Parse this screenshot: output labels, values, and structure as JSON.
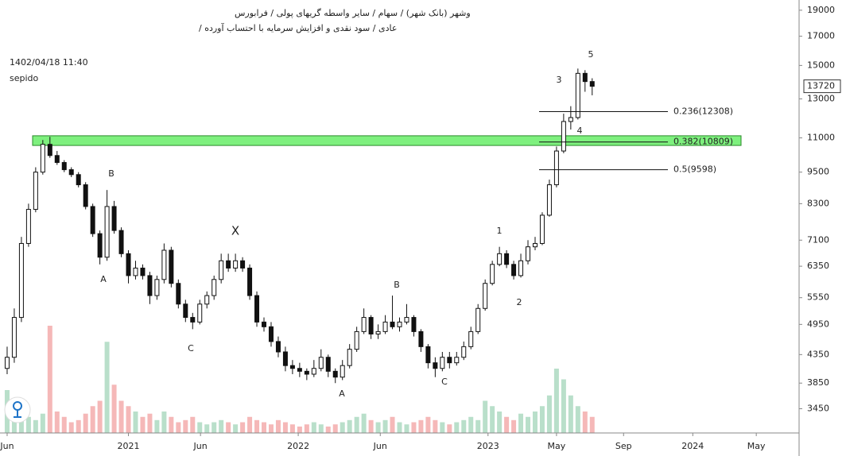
{
  "chart_data": {
    "type": "candlestick",
    "header": [
      "وشهر (بانک شهر) / سهام / سایر واسطه گریهای پولی / فرابورس",
      "عادی / سود نقدی و افزایش سرمایه با احتساب آورده /"
    ],
    "timestamp": "1402/04/18 11:40",
    "source": "sepido",
    "log_scale": true,
    "ylim": [
      3110,
      19850
    ],
    "yticks": [
      19000,
      17000,
      15000,
      13000,
      11000,
      9500,
      8300,
      7100,
      6350,
      5550,
      4950,
      4350,
      3850,
      3450
    ],
    "last_price": 13720,
    "xlim": [
      -1,
      111
    ],
    "xticks": [
      {
        "value": 0,
        "label": "Jun"
      },
      {
        "value": 17,
        "label": "2021"
      },
      {
        "value": 27.1,
        "label": "Jun"
      },
      {
        "value": 40.8,
        "label": "2022"
      },
      {
        "value": 52.3,
        "label": "Jun"
      },
      {
        "value": 67.4,
        "label": "2023"
      },
      {
        "value": 77,
        "label": "May"
      },
      {
        "value": 86.4,
        "label": "Sep"
      },
      {
        "value": 96.1,
        "label": "2024"
      },
      {
        "value": 105,
        "label": "May"
      }
    ],
    "open": [
      4100,
      4300,
      5100,
      7000,
      8100,
      9500,
      10700,
      10200,
      9900,
      9600,
      9400,
      9000,
      8200,
      7300,
      6600,
      8200,
      7400,
      6700,
      6100,
      6300,
      6100,
      5600,
      6000,
      6800,
      5900,
      5400,
      5100,
      5000,
      5400,
      5600,
      6000,
      6500,
      6300,
      6500,
      6300,
      5600,
      5000,
      4900,
      4600,
      4400,
      4150,
      4100,
      4050,
      4000,
      4100,
      4300,
      4050,
      3950,
      4150,
      4450,
      4800,
      5100,
      4750,
      4800,
      5000,
      4900,
      5000,
      5100,
      4800,
      4500,
      4200,
      4100,
      4300,
      4200,
      4300,
      4500,
      4800,
      5300,
      5900,
      6400,
      6700,
      6400,
      6100,
      6500,
      6900,
      7000,
      7900,
      9000,
      10400,
      11800,
      12000,
      14500,
      14000
    ],
    "high": [
      4500,
      5300,
      7200,
      8300,
      9700,
      10900,
      11050,
      10400,
      10000,
      9700,
      9500,
      9100,
      8300,
      7400,
      8800,
      8400,
      7500,
      6800,
      6500,
      6400,
      6200,
      6100,
      7000,
      6900,
      6000,
      5500,
      5200,
      5500,
      5700,
      6100,
      6700,
      6700,
      6700,
      6600,
      6400,
      5700,
      5100,
      5000,
      4700,
      4500,
      4250,
      4200,
      4100,
      4250,
      4450,
      4350,
      4100,
      4250,
      4550,
      4900,
      5300,
      5150,
      4950,
      5150,
      5600,
      5100,
      5400,
      5150,
      4850,
      4550,
      4300,
      4400,
      4400,
      4400,
      4600,
      4900,
      5400,
      6000,
      6500,
      6900,
      6800,
      6500,
      6700,
      7100,
      7200,
      8000,
      9200,
      10600,
      12200,
      12600,
      14800,
      14700,
      14200
    ],
    "low": [
      4000,
      4200,
      5000,
      6900,
      8000,
      9400,
      10100,
      9800,
      9500,
      9300,
      8900,
      8100,
      7200,
      6400,
      6500,
      7300,
      6600,
      5900,
      6000,
      6000,
      5400,
      5500,
      5900,
      5800,
      5300,
      5000,
      4850,
      4950,
      5300,
      5500,
      5900,
      6200,
      6200,
      6200,
      5500,
      4900,
      4800,
      4500,
      4300,
      4050,
      4000,
      3950,
      3900,
      3950,
      4050,
      3950,
      3850,
      3900,
      4100,
      4400,
      4750,
      4650,
      4650,
      4750,
      4850,
      4800,
      4950,
      4700,
      4400,
      4100,
      3950,
      4050,
      4100,
      4150,
      4250,
      4450,
      4750,
      5250,
      5850,
      6350,
      6300,
      6000,
      6050,
      6400,
      6800,
      6950,
      7850,
      8900,
      10300,
      11400,
      11900,
      13400,
      13200
    ],
    "close": [
      4300,
      5100,
      7000,
      8100,
      9500,
      10700,
      10200,
      9900,
      9600,
      9400,
      9000,
      8200,
      7300,
      6600,
      8200,
      7400,
      6700,
      6100,
      6300,
      6100,
      5600,
      6000,
      6800,
      5900,
      5400,
      5100,
      5000,
      5400,
      5600,
      6000,
      6500,
      6300,
      6500,
      6300,
      5600,
      5000,
      4900,
      4600,
      4400,
      4150,
      4100,
      4050,
      4000,
      4100,
      4300,
      4050,
      3950,
      4150,
      4450,
      4800,
      5100,
      4750,
      4800,
      5000,
      4900,
      5000,
      5100,
      4800,
      4500,
      4200,
      4100,
      4300,
      4200,
      4300,
      4500,
      4800,
      5300,
      5900,
      6400,
      6700,
      6400,
      6100,
      6500,
      6900,
      7000,
      7900,
      9000,
      10400,
      11800,
      12000,
      14500,
      14000,
      13720
    ],
    "volume": [
      40,
      25,
      20,
      15,
      12,
      18,
      100,
      20,
      15,
      10,
      12,
      18,
      25,
      30,
      85,
      45,
      30,
      25,
      20,
      15,
      18,
      12,
      20,
      15,
      10,
      12,
      15,
      10,
      8,
      10,
      12,
      10,
      8,
      10,
      15,
      12,
      10,
      8,
      12,
      10,
      8,
      6,
      8,
      10,
      8,
      6,
      8,
      10,
      12,
      15,
      18,
      12,
      10,
      12,
      15,
      10,
      8,
      10,
      12,
      15,
      12,
      10,
      8,
      10,
      12,
      15,
      12,
      30,
      25,
      20,
      15,
      12,
      18,
      15,
      20,
      25,
      35,
      60,
      50,
      35,
      25,
      20,
      15
    ],
    "vlim": [
      0,
      100
    ],
    "up_color": "#ffffff",
    "down_color": "#111111",
    "volume_up_color": "#b9dfca",
    "volume_down_color": "#f5b8b8",
    "zone": [
      10650,
      11100
    ],
    "zone_color": "#7ef07e",
    "fib_levels": [
      {
        "value": 12308,
        "label": "0.236(12308)"
      },
      {
        "value": 10809,
        "label": "0.382(10809)"
      },
      {
        "value": 9598,
        "label": "0.5(9598)"
      }
    ],
    "annotations": [
      "B",
      "A",
      "C",
      "X",
      "B",
      "A",
      "C",
      "1",
      "2",
      "3",
      "5",
      "4"
    ]
  }
}
